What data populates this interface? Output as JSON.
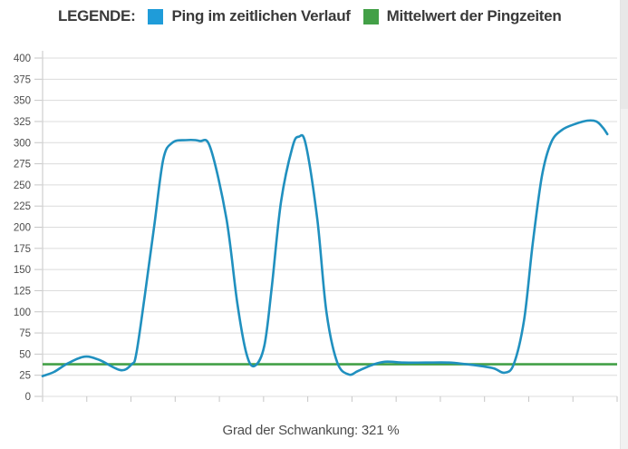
{
  "legend": {
    "title": "LEGENDE:",
    "items": [
      {
        "label": "Ping im zeitlichen Verlauf",
        "color": "#1f9cd9"
      },
      {
        "label": "Mittelwert der Pingzeiten",
        "color": "#43a047"
      }
    ]
  },
  "caption": "Grad der Schwankung: 321 %",
  "colors": {
    "ping_line": "#2090bf",
    "mean_line": "#43a047",
    "grid_line": "#dcdcdc",
    "axis_line": "#c6c6c6",
    "tick_label": "#4d4d4d",
    "legend_text": "#3a3a3a",
    "background": "#ffffff",
    "scrollbar_track": "#f1f1f1"
  },
  "chart_data": {
    "type": "line",
    "title": "",
    "xlabel": "",
    "ylabel": "",
    "ylim": [
      0,
      400
    ],
    "ytick_step": 25,
    "yticks": [
      0,
      25,
      50,
      75,
      100,
      125,
      150,
      175,
      200,
      225,
      250,
      275,
      300,
      325,
      350,
      375,
      400
    ],
    "x_tick_count": 14,
    "x_axis_labels": "none",
    "grid": "horizontal",
    "legend_position": "top",
    "series": [
      {
        "name": "Ping im zeitlichen Verlauf",
        "color": "#2090bf",
        "points": [
          {
            "x": 0.0,
            "y": 24
          },
          {
            "x": 0.02,
            "y": 29
          },
          {
            "x": 0.044,
            "y": 39
          },
          {
            "x": 0.073,
            "y": 47
          },
          {
            "x": 0.099,
            "y": 43
          },
          {
            "x": 0.136,
            "y": 31
          },
          {
            "x": 0.155,
            "y": 38
          },
          {
            "x": 0.163,
            "y": 50
          },
          {
            "x": 0.178,
            "y": 120
          },
          {
            "x": 0.194,
            "y": 200
          },
          {
            "x": 0.21,
            "y": 280
          },
          {
            "x": 0.226,
            "y": 300
          },
          {
            "x": 0.249,
            "y": 303
          },
          {
            "x": 0.273,
            "y": 302
          },
          {
            "x": 0.292,
            "y": 294
          },
          {
            "x": 0.32,
            "y": 210
          },
          {
            "x": 0.339,
            "y": 110
          },
          {
            "x": 0.355,
            "y": 50
          },
          {
            "x": 0.369,
            "y": 36
          },
          {
            "x": 0.386,
            "y": 60
          },
          {
            "x": 0.399,
            "y": 130
          },
          {
            "x": 0.415,
            "y": 230
          },
          {
            "x": 0.435,
            "y": 295
          },
          {
            "x": 0.446,
            "y": 307
          },
          {
            "x": 0.458,
            "y": 298
          },
          {
            "x": 0.478,
            "y": 210
          },
          {
            "x": 0.494,
            "y": 100
          },
          {
            "x": 0.513,
            "y": 40
          },
          {
            "x": 0.533,
            "y": 26
          },
          {
            "x": 0.549,
            "y": 30
          },
          {
            "x": 0.573,
            "y": 37
          },
          {
            "x": 0.596,
            "y": 41
          },
          {
            "x": 0.628,
            "y": 40
          },
          {
            "x": 0.667,
            "y": 40
          },
          {
            "x": 0.707,
            "y": 40
          },
          {
            "x": 0.738,
            "y": 38
          },
          {
            "x": 0.762,
            "y": 36
          },
          {
            "x": 0.786,
            "y": 33
          },
          {
            "x": 0.804,
            "y": 28
          },
          {
            "x": 0.82,
            "y": 38
          },
          {
            "x": 0.838,
            "y": 90
          },
          {
            "x": 0.853,
            "y": 180
          },
          {
            "x": 0.869,
            "y": 260
          },
          {
            "x": 0.885,
            "y": 300
          },
          {
            "x": 0.904,
            "y": 315
          },
          {
            "x": 0.927,
            "y": 322
          },
          {
            "x": 0.948,
            "y": 326
          },
          {
            "x": 0.964,
            "y": 325
          },
          {
            "x": 0.975,
            "y": 318
          },
          {
            "x": 0.983,
            "y": 310
          }
        ]
      },
      {
        "name": "Mittelwert der Pingzeiten",
        "color": "#43a047",
        "mean_value": 38
      }
    ]
  }
}
